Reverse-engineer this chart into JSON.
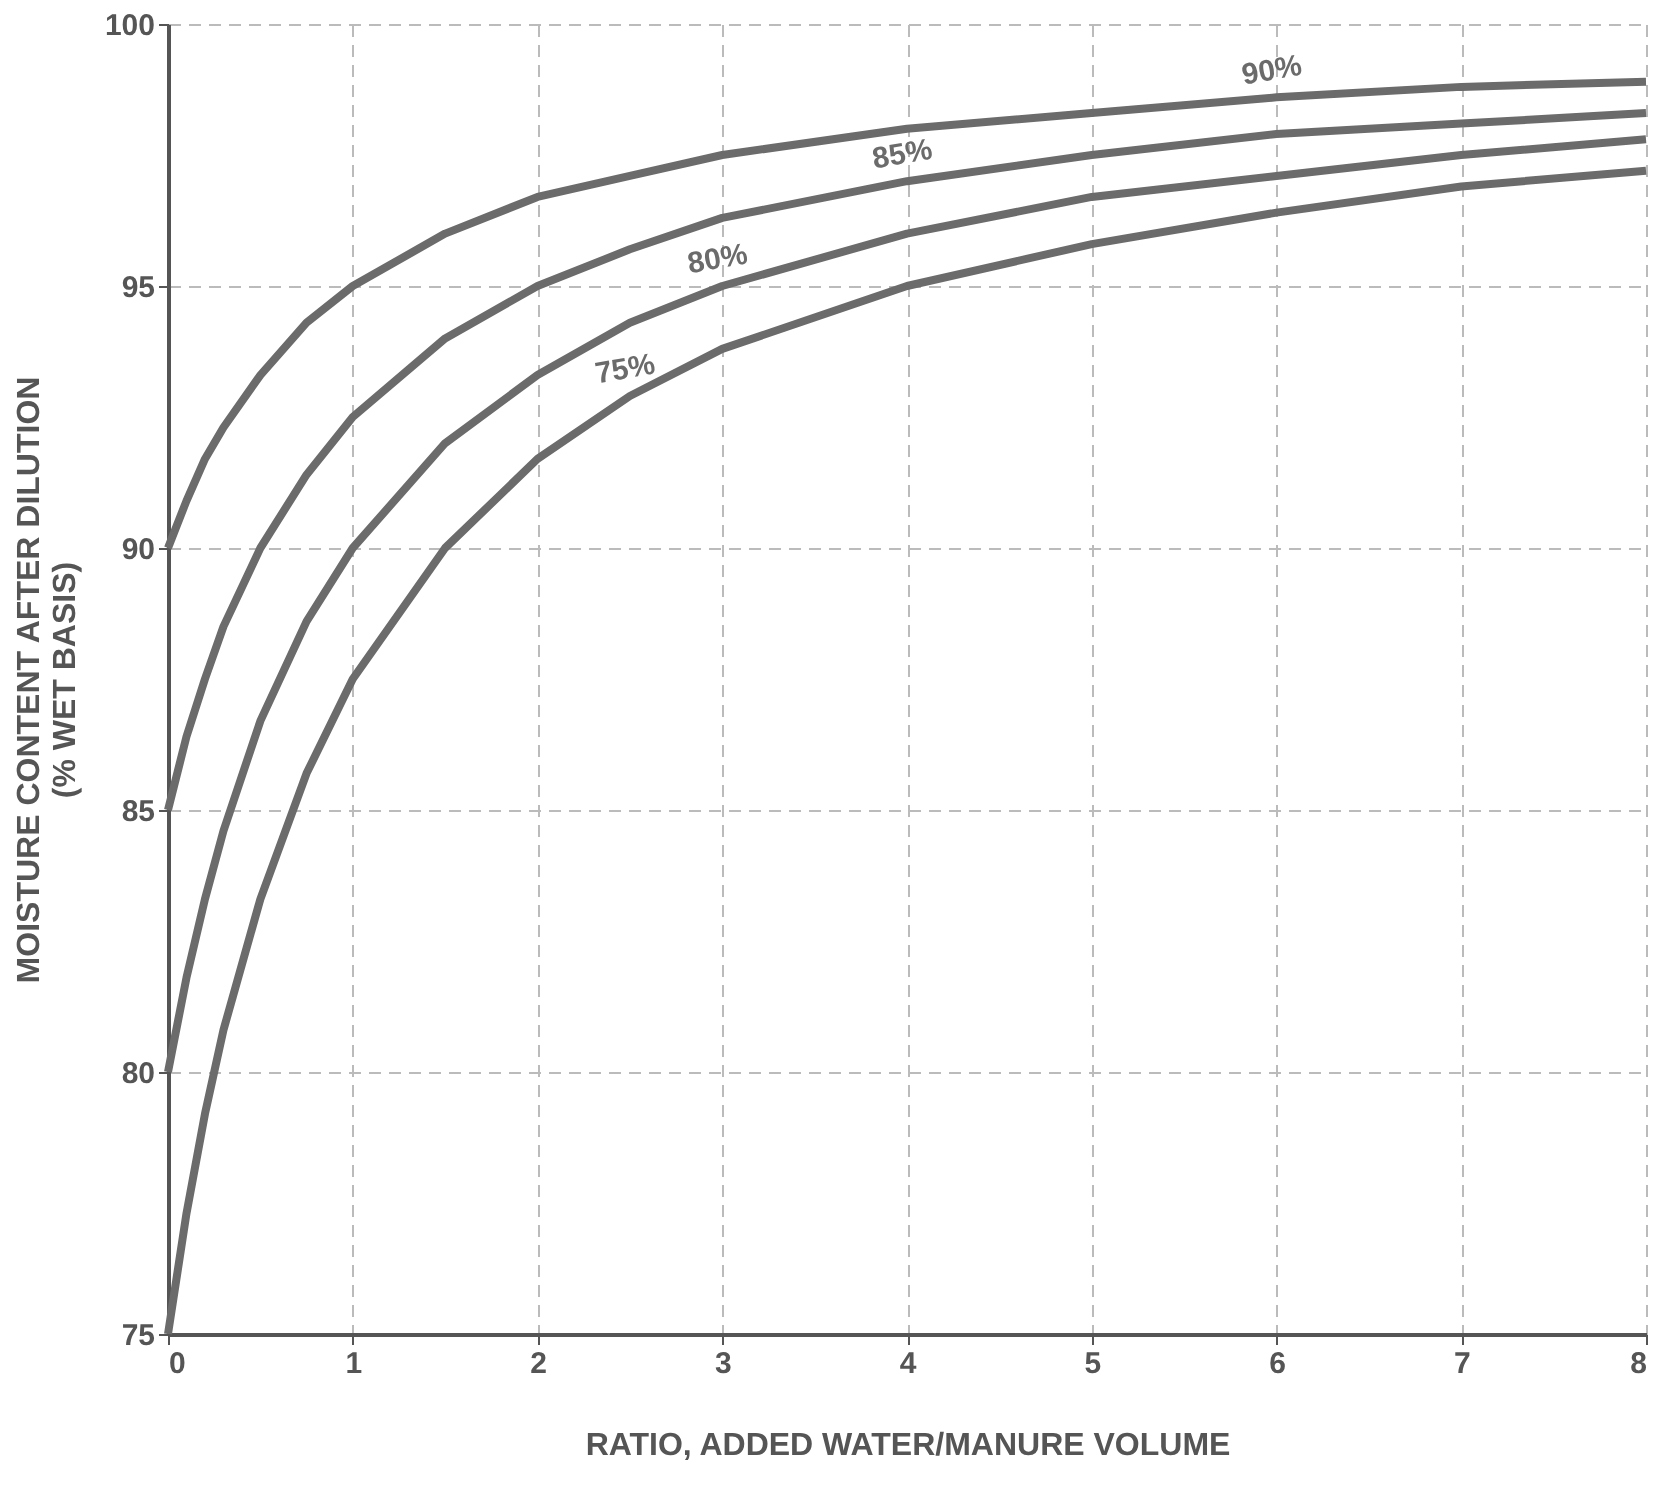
{
  "chart_data": {
    "type": "line",
    "xlabel": "RATIO, ADDED WATER/MANURE VOLUME",
    "ylabel": "MOISTURE CONTENT AFTER DILUTION\n(% WET BASIS)",
    "x": [
      0,
      0.1,
      0.2,
      0.3,
      0.5,
      0.75,
      1,
      1.5,
      2,
      2.5,
      3,
      4,
      5,
      6,
      7,
      8
    ],
    "series": [
      {
        "name": "90%",
        "color": "#6b6b6b",
        "values": [
          90,
          90.9,
          91.7,
          92.3,
          93.3,
          94.3,
          95,
          96,
          96.7,
          97.1,
          97.5,
          98,
          98.3,
          98.6,
          98.8,
          98.9
        ]
      },
      {
        "name": "85%",
        "color": "#6b6b6b",
        "values": [
          85,
          86.4,
          87.5,
          88.5,
          90,
          91.4,
          92.5,
          94,
          95,
          95.7,
          96.3,
          97,
          97.5,
          97.9,
          98.1,
          98.3
        ]
      },
      {
        "name": "80%",
        "color": "#6b6b6b",
        "values": [
          80,
          81.8,
          83.3,
          84.6,
          86.7,
          88.6,
          90,
          92,
          93.3,
          94.3,
          95,
          96,
          96.7,
          97.1,
          97.5,
          97.8
        ]
      },
      {
        "name": "75%",
        "color": "#6b6b6b",
        "values": [
          75,
          77.3,
          79.2,
          80.8,
          83.3,
          85.7,
          87.5,
          90,
          91.7,
          92.9,
          93.8,
          95,
          95.8,
          96.4,
          96.9,
          97.2
        ]
      }
    ],
    "xlim": [
      0,
      8
    ],
    "xticks": [
      0,
      1,
      2,
      3,
      4,
      5,
      6,
      7,
      8
    ],
    "ylim": [
      75,
      100
    ],
    "yticks": [
      75,
      80,
      85,
      90,
      95,
      100
    ],
    "grid": true,
    "legend": false,
    "marker": "none",
    "line_style": "solid"
  }
}
